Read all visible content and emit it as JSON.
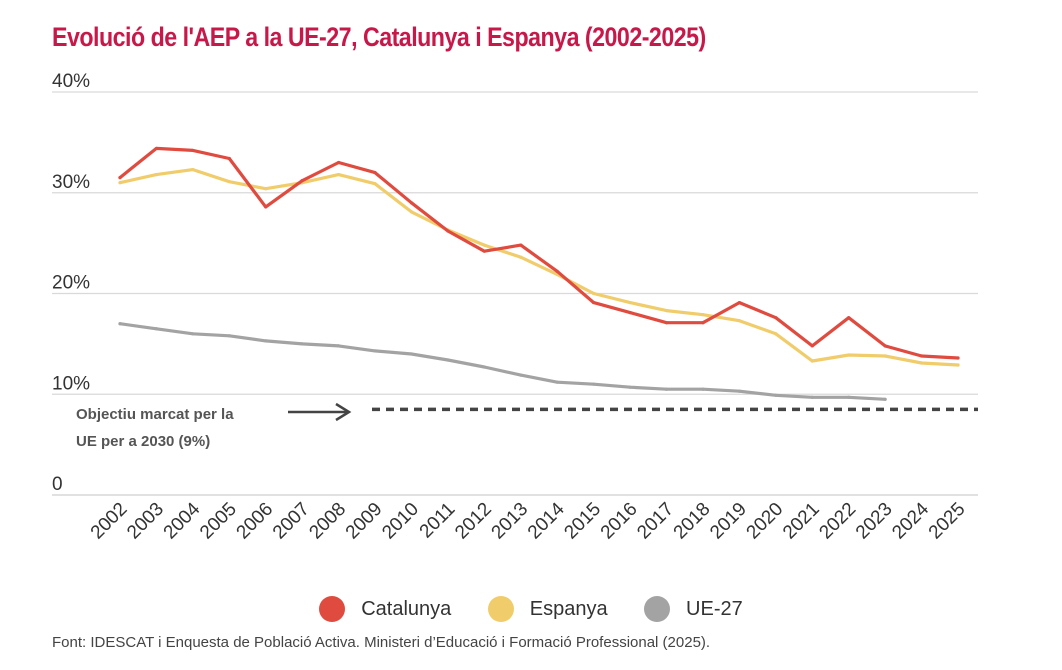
{
  "chart_data": {
    "type": "line",
    "title": "Evolució de l'AEP a la UE-27, Catalunya i Espanya (2002-2025)",
    "x": [
      "2002",
      "2003",
      "2004",
      "2005",
      "2006",
      "2007",
      "2008",
      "2009",
      "2010",
      "2011",
      "2012",
      "2013",
      "2014",
      "2015",
      "2016",
      "2017",
      "2018",
      "2019",
      "2020",
      "2021",
      "2022",
      "2023",
      "2024",
      "2025"
    ],
    "ylim": [
      0,
      40
    ],
    "yticks": [
      {
        "value": 0,
        "label": "0"
      },
      {
        "value": 10,
        "label": "10%"
      },
      {
        "value": 20,
        "label": "20%"
      },
      {
        "value": 30,
        "label": "30%"
      },
      {
        "value": 40,
        "label": "40%"
      }
    ],
    "grid": true,
    "legend_position": "bottom",
    "series": [
      {
        "name": "Catalunya",
        "color": "#e04b3f",
        "values": [
          31.5,
          34.4,
          34.2,
          33.4,
          28.6,
          31.2,
          33.0,
          32.0,
          29.0,
          26.2,
          24.2,
          24.8,
          22.2,
          19.1,
          18.1,
          17.1,
          17.1,
          19.1,
          17.6,
          14.8,
          17.6,
          14.8,
          13.8,
          13.6
        ]
      },
      {
        "name": "Espanya",
        "color": "#f0cc6a",
        "values": [
          31.0,
          31.8,
          32.3,
          31.1,
          30.4,
          31.0,
          31.8,
          30.9,
          28.1,
          26.3,
          24.8,
          23.6,
          21.9,
          20.0,
          19.1,
          18.3,
          17.9,
          17.3,
          16.0,
          13.3,
          13.9,
          13.8,
          13.1,
          12.9
        ]
      },
      {
        "name": "UE-27",
        "color": "#a3a3a3",
        "values": [
          17.0,
          16.5,
          16.0,
          15.8,
          15.3,
          15.0,
          14.8,
          14.3,
          14.0,
          13.4,
          12.7,
          11.9,
          11.2,
          11.0,
          10.7,
          10.5,
          10.5,
          10.3,
          9.9,
          9.7,
          9.7,
          9.5,
          null,
          null
        ]
      }
    ],
    "target": {
      "value": 8.5,
      "label_lines": [
        "Objectiu marcat per la",
        "UE per a 2030 (9%)"
      ],
      "color": "#444444"
    }
  },
  "source": "Font: IDESCAT i Enquesta de Població Activa. Ministeri d’Educació i Formació Professional (2025)."
}
